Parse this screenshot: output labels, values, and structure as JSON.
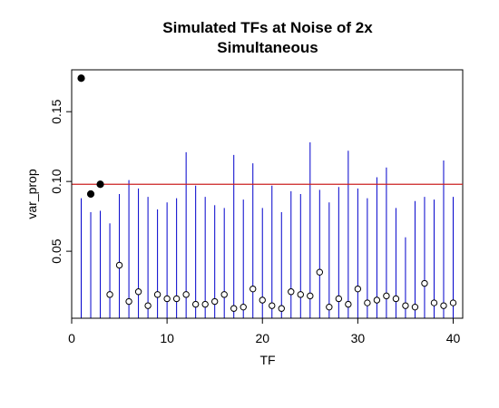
{
  "chart_data": {
    "type": "scatter",
    "title": [
      "Simulated TFs at Noise of 2x",
      "Simultaneous"
    ],
    "xlabel": "TF",
    "ylabel": "var_prop",
    "xlim": [
      0,
      41
    ],
    "ylim": [
      0.002,
      0.18
    ],
    "x_ticks": [
      0,
      10,
      20,
      30,
      40
    ],
    "y_ticks": [
      0.05,
      0.1,
      0.15
    ],
    "x_tick_labels": [
      "0",
      "10",
      "20",
      "30",
      "40"
    ],
    "y_tick_labels": [
      "0.05",
      "0.10",
      "0.15"
    ],
    "threshold": 0.098,
    "colors": {
      "spike": "#0000cc",
      "threshold": "#cc2222",
      "point": "#000000"
    },
    "x": [
      1,
      2,
      3,
      4,
      5,
      6,
      7,
      8,
      9,
      10,
      11,
      12,
      13,
      14,
      15,
      16,
      17,
      18,
      19,
      20,
      21,
      22,
      23,
      24,
      25,
      26,
      27,
      28,
      29,
      30,
      31,
      32,
      33,
      34,
      35,
      36,
      37,
      38,
      39,
      40
    ],
    "spike_heights": [
      0.088,
      0.078,
      0.079,
      0.07,
      0.091,
      0.101,
      0.095,
      0.089,
      0.08,
      0.085,
      0.088,
      0.121,
      0.097,
      0.089,
      0.083,
      0.081,
      0.119,
      0.087,
      0.113,
      0.081,
      0.097,
      0.078,
      0.093,
      0.091,
      0.128,
      0.094,
      0.085,
      0.096,
      0.122,
      0.095,
      0.088,
      0.103,
      0.11,
      0.081,
      0.06,
      0.086,
      0.089,
      0.087,
      0.115,
      0.089
    ],
    "points": [
      0.174,
      0.091,
      0.098,
      0.019,
      0.04,
      0.014,
      0.021,
      0.011,
      0.019,
      0.016,
      0.016,
      0.019,
      0.012,
      0.012,
      0.014,
      0.019,
      0.009,
      0.01,
      0.023,
      0.015,
      0.011,
      0.009,
      0.021,
      0.019,
      0.018,
      0.035,
      0.01,
      0.016,
      0.012,
      0.023,
      0.013,
      0.015,
      0.018,
      0.016,
      0.011,
      0.01,
      0.027,
      0.013,
      0.011,
      0.013
    ],
    "filled_points": [
      1,
      2,
      3
    ]
  }
}
